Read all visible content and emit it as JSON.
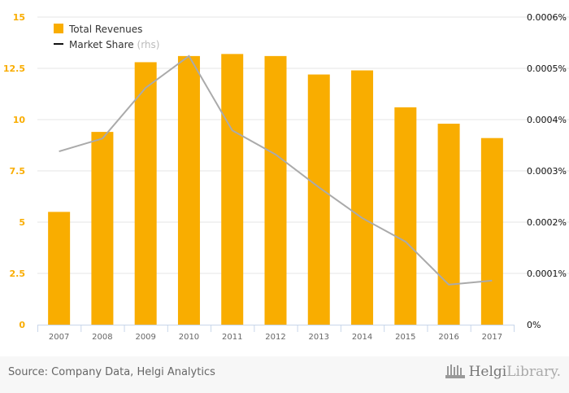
{
  "chart_data": {
    "type": "bar",
    "categories": [
      "2007",
      "2008",
      "2009",
      "2010",
      "2011",
      "2012",
      "2013",
      "2014",
      "2015",
      "2016",
      "2017"
    ],
    "series": [
      {
        "name": "Total Revenues",
        "type": "bar",
        "axis": "left",
        "color": "#f9ad00",
        "values": [
          5.5,
          9.4,
          12.8,
          13.1,
          13.2,
          13.1,
          12.2,
          12.4,
          10.6,
          9.8,
          9.1
        ]
      },
      {
        "name": "Market Share",
        "name_suffix": "(rhs)",
        "type": "line",
        "axis": "right",
        "color": "#aaaaaa",
        "values": [
          0.000338,
          0.000363,
          0.000462,
          0.000524,
          0.000379,
          0.000332,
          0.000268,
          0.000208,
          0.000162,
          7.8e-05,
          8.6e-05
        ]
      }
    ],
    "left_axis": {
      "ylim": [
        0,
        15
      ],
      "ticks": [
        "0",
        "2.5",
        "5",
        "7.5",
        "10",
        "12.5",
        "15"
      ],
      "color": "#f9ad00"
    },
    "right_axis": {
      "ylim": [
        0,
        0.0006
      ],
      "ticks": [
        "0%",
        "0.0001%",
        "0.0002%",
        "0.0003%",
        "0.0004%",
        "0.0005%",
        "0.0006%"
      ]
    },
    "legend_placement": "top-left",
    "grid": true
  },
  "footer": {
    "source": "Source: Company Data, Helgi Analytics",
    "logo_bold": "Helgi",
    "logo_light": "Library."
  }
}
